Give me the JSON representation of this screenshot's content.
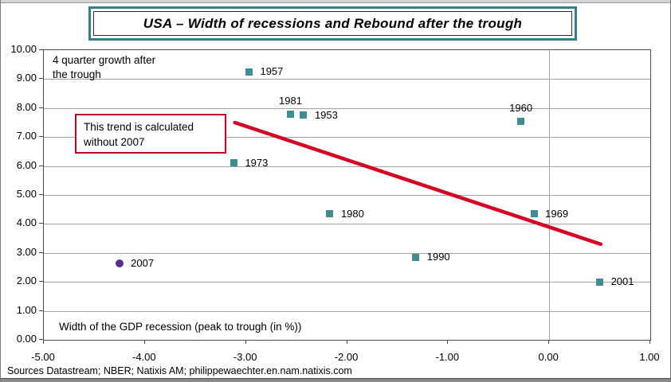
{
  "frame": {
    "title": "USA –  Width of recessions and Rebound after the trough",
    "source_note": "Sources Datastream; NBER; Natixis AM; philippewaechter.en.nam.natixis.com"
  },
  "colors": {
    "marker_teal": "#3e8d95",
    "marker_purple": "#5b2c8f",
    "trend_red": "#d50022",
    "annotation_border": "#bf0022",
    "title_border": "#2c8487",
    "grid": "#a3a3a3",
    "axis": "#4c4c4c"
  },
  "chart_data": {
    "type": "scatter",
    "title": "USA –  Width of recessions and Rebound after the trough",
    "xlabel": "Width of the GDP recession (peak to trough (in %))",
    "ylabel_lines": [
      "4 quarter growth after",
      "the trough"
    ],
    "xlim": [
      -5,
      1
    ],
    "ylim": [
      0,
      10
    ],
    "grid": {
      "horizontal": true,
      "vertical_at": [
        0
      ]
    },
    "x_ticks": [
      {
        "v": -5,
        "label": "-5.00"
      },
      {
        "v": -4,
        "label": "-4.00"
      },
      {
        "v": -3,
        "label": "-3.00"
      },
      {
        "v": -2,
        "label": "-2.00"
      },
      {
        "v": -1,
        "label": "-1.00"
      },
      {
        "v": 0,
        "label": "0.00"
      },
      {
        "v": 1,
        "label": "1.00"
      }
    ],
    "y_ticks": [
      {
        "v": 0,
        "label": "0.00"
      },
      {
        "v": 1,
        "label": "1.00"
      },
      {
        "v": 2,
        "label": "2.00"
      },
      {
        "v": 3,
        "label": "3.00"
      },
      {
        "v": 4,
        "label": "4.00"
      },
      {
        "v": 5,
        "label": "5.00"
      },
      {
        "v": 6,
        "label": "6.00"
      },
      {
        "v": 7,
        "label": "7.00"
      },
      {
        "v": 8,
        "label": "8.00"
      },
      {
        "v": 9,
        "label": "9.00"
      },
      {
        "v": 10,
        "label": "10.00"
      }
    ],
    "points": [
      {
        "label": "1957",
        "x": -2.97,
        "y": 9.25,
        "label_pos": "right",
        "marker": "square"
      },
      {
        "label": "1981",
        "x": -2.56,
        "y": 7.8,
        "label_pos": "above",
        "marker": "square"
      },
      {
        "label": "1953",
        "x": -2.43,
        "y": 7.75,
        "label_pos": "right",
        "marker": "square"
      },
      {
        "label": "1960",
        "x": -0.28,
        "y": 7.55,
        "label_pos": "above",
        "marker": "square"
      },
      {
        "label": "1973",
        "x": -3.12,
        "y": 6.1,
        "label_pos": "right",
        "marker": "square"
      },
      {
        "label": "1980",
        "x": -2.17,
        "y": 4.35,
        "label_pos": "right",
        "marker": "square"
      },
      {
        "label": "1969",
        "x": -0.15,
        "y": 4.35,
        "label_pos": "right",
        "marker": "square"
      },
      {
        "label": "1990",
        "x": -1.32,
        "y": 2.85,
        "label_pos": "right",
        "marker": "square"
      },
      {
        "label": "2001",
        "x": 0.5,
        "y": 2.0,
        "label_pos": "right",
        "marker": "square"
      },
      {
        "label": "2007",
        "x": -4.25,
        "y": 2.65,
        "label_pos": "right",
        "marker": "circle"
      }
    ],
    "trend_line": {
      "x1": -3.11,
      "y1": 7.5,
      "x2": 0.51,
      "y2": 3.3,
      "stroke_width": 4.5
    },
    "annotation": {
      "lines": [
        "This trend is calculated",
        "without 2007"
      ]
    }
  }
}
